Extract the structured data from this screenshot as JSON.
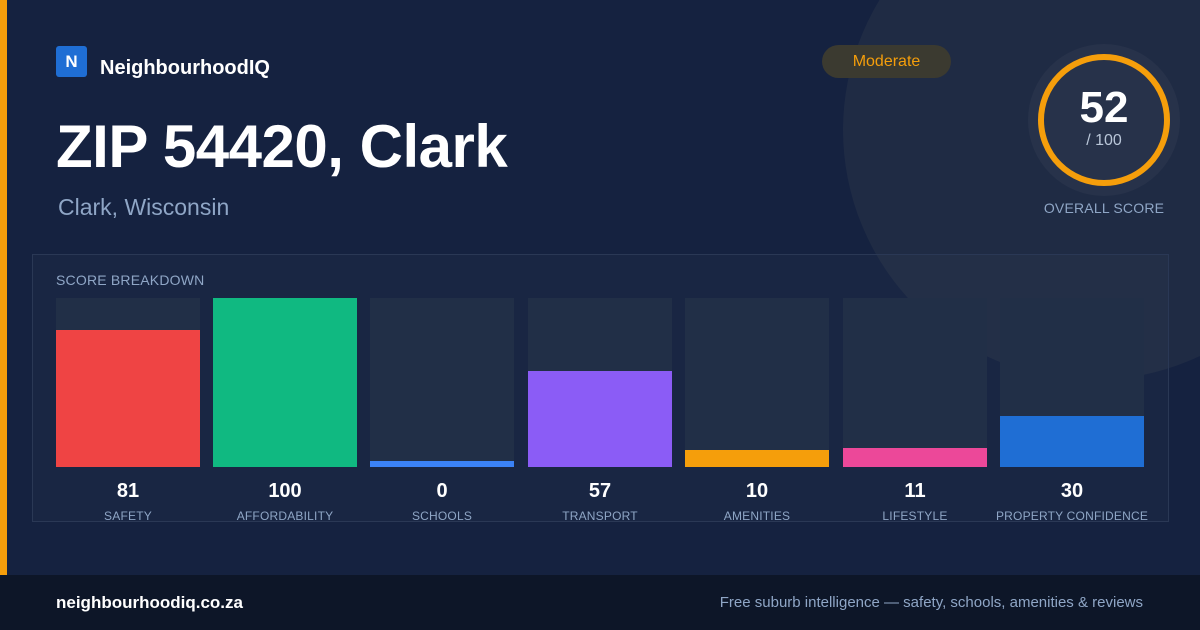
{
  "brand": {
    "logo_letter": "N",
    "name": "NeighbourhoodIQ"
  },
  "badge": {
    "label": "Moderate",
    "color": "#f59e0b"
  },
  "title": "ZIP 54420, Clark",
  "subtitle": "Clark, Wisconsin",
  "overall": {
    "score": "52",
    "max": "/ 100",
    "label": "OVERALL SCORE",
    "fraction": 0.52,
    "ring_color": "#f59e0b"
  },
  "breakdown": {
    "title": "SCORE BREAKDOWN",
    "items": [
      {
        "label": "SAFETY",
        "value": 81,
        "display": "81",
        "color": "#ef4444"
      },
      {
        "label": "AFFORDABILITY",
        "value": 100,
        "display": "100",
        "color": "#10b981"
      },
      {
        "label": "SCHOOLS",
        "value": 0,
        "display": "0",
        "color": "#3b82f6"
      },
      {
        "label": "TRANSPORT",
        "value": 57,
        "display": "57",
        "color": "#8b5cf6"
      },
      {
        "label": "AMENITIES",
        "value": 10,
        "display": "10",
        "color": "#f59e0b"
      },
      {
        "label": "LIFESTYLE",
        "value": 11,
        "display": "11",
        "color": "#ec4899"
      },
      {
        "label": "PROPERTY CONFIDENCE",
        "value": 30,
        "display": "30",
        "color": "#1f6ed4"
      }
    ]
  },
  "footer": {
    "url": "neighbourhoodiq.co.za",
    "tagline": "Free suburb intelligence — safety, schools, amenities & reviews"
  }
}
